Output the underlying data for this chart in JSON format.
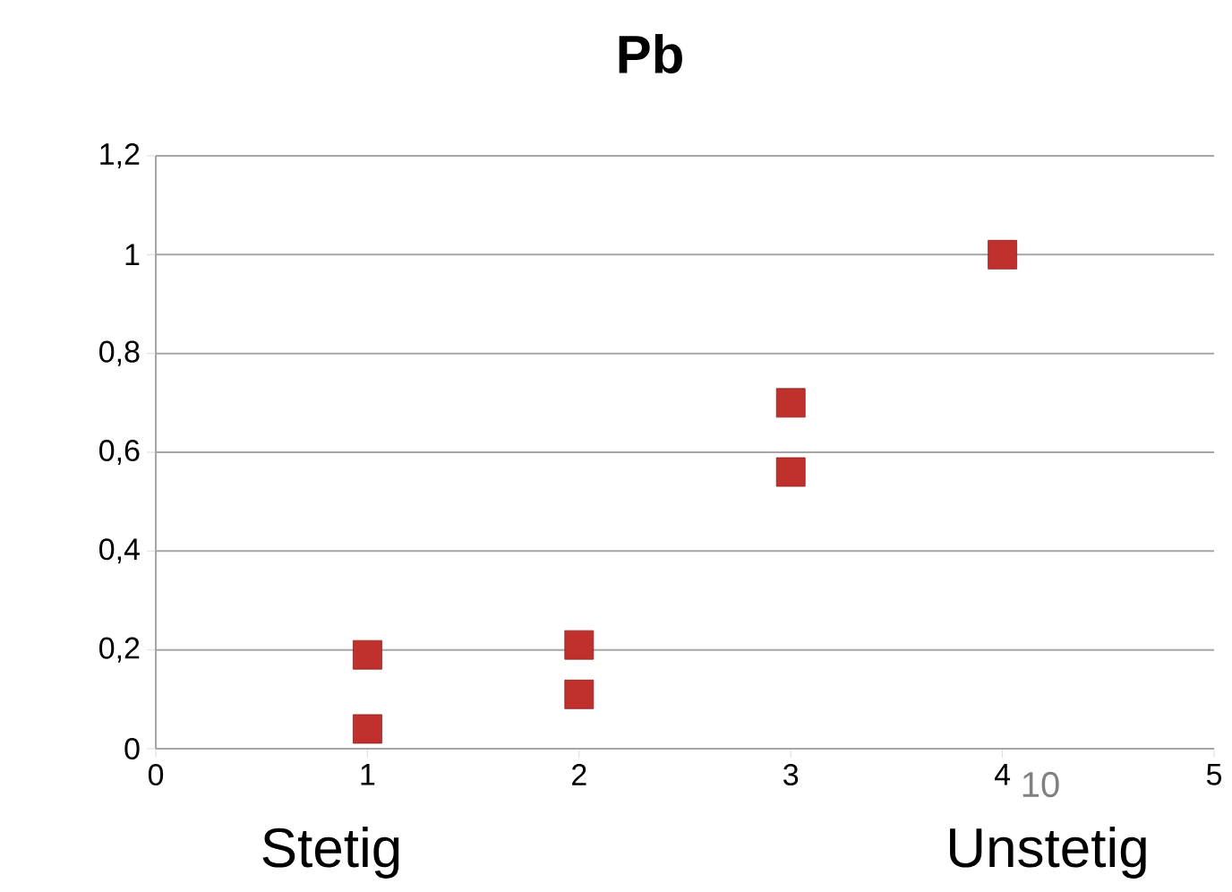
{
  "chart_data": {
    "type": "scatter",
    "title": "Pb",
    "x": [
      1,
      1,
      2,
      2,
      3,
      3,
      4
    ],
    "values": [
      0.19,
      0.04,
      0.21,
      0.11,
      0.7,
      0.56,
      1.0
    ],
    "color": "#c0302c",
    "marker": "square",
    "grid": "y",
    "xlim": [
      0,
      5
    ],
    "xticks": [
      0,
      1,
      2,
      3,
      4,
      5
    ],
    "ylim": [
      0,
      1.2
    ],
    "yticks": [
      0,
      {
        "value": 0.2,
        "label": "0,2"
      },
      {
        "value": 0.4,
        "label": "0,4"
      },
      {
        "value": 0.6,
        "label": "0,6"
      },
      {
        "value": 0.8,
        "label": "0,8"
      },
      1,
      {
        "value": 1.2,
        "label": "1,2"
      }
    ],
    "annotations": [
      "Stetig",
      "Unstetig",
      "10"
    ]
  }
}
